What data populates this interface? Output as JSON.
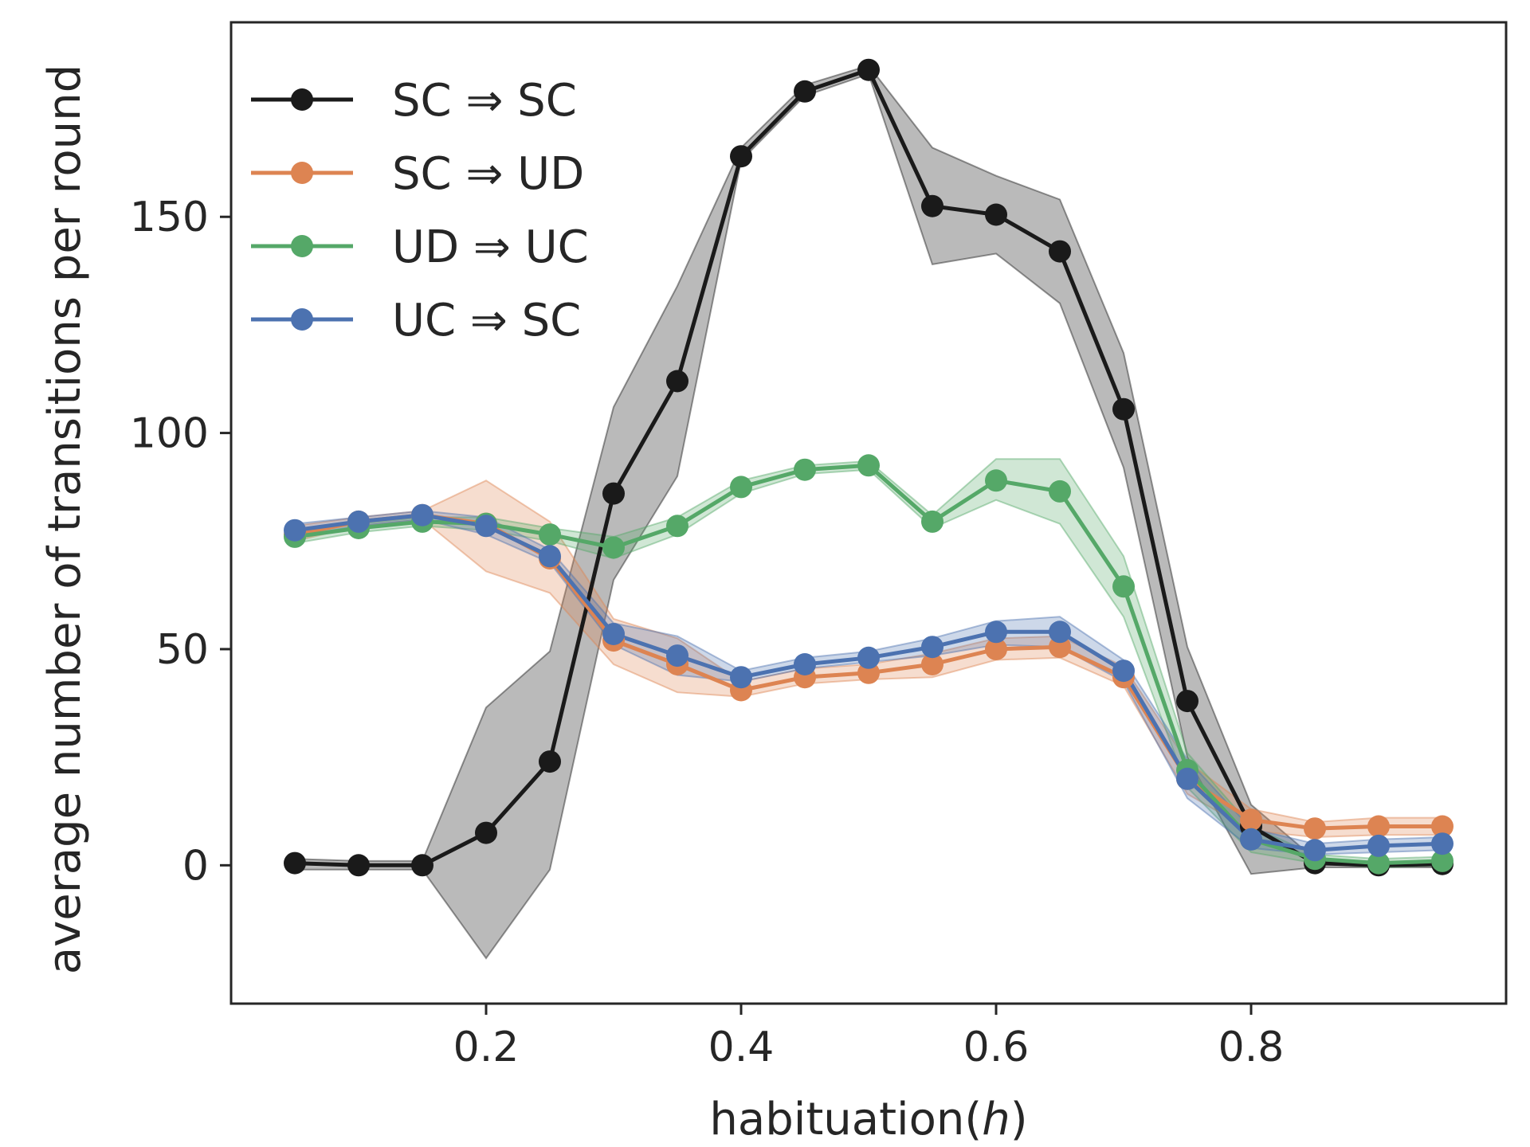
{
  "chart_data": {
    "type": "line",
    "title": "",
    "xlabel": "habituation(",
    "xlabel_var": "h",
    "xlabel_close": ")",
    "ylabel": "average number of transitions per round",
    "xlim": [
      0.0,
      1.0
    ],
    "ylim": [
      -32,
      195
    ],
    "xticks": [
      0.2,
      0.4,
      0.6,
      0.8
    ],
    "xtick_labels": [
      "0.2",
      "0.4",
      "0.6",
      "0.8"
    ],
    "yticks": [
      0,
      50,
      100,
      150
    ],
    "ytick_labels": [
      "0",
      "50",
      "100",
      "150"
    ],
    "grid": false,
    "legend_position": "top-left",
    "x": [
      0.05,
      0.1,
      0.15,
      0.2,
      0.25,
      0.3,
      0.35,
      0.4,
      0.45,
      0.5,
      0.55,
      0.6,
      0.65,
      0.7,
      0.75,
      0.8,
      0.85,
      0.9,
      0.95
    ],
    "series": [
      {
        "name": "SC ⇒ SC",
        "color": "#1a1a1a",
        "values": [
          0.5,
          0,
          0,
          7.5,
          24,
          86,
          112,
          164,
          179,
          184,
          152.5,
          150.5,
          142,
          105.5,
          38,
          9,
          0.5,
          0,
          0.3
        ],
        "lower": [
          -1,
          -1,
          -1,
          -21.5,
          -1,
          66,
          90,
          163,
          178,
          183,
          139,
          141.5,
          130,
          92,
          25,
          -2,
          -0.5,
          -0.5,
          -0.5
        ],
        "upper": [
          1.5,
          1,
          1,
          36.5,
          49.5,
          106,
          134,
          166,
          180.5,
          185,
          166,
          159.5,
          154,
          118.5,
          50.5,
          14,
          1.5,
          0.5,
          1
        ]
      },
      {
        "name": "SC ⇒ UD",
        "color": "#dd8452",
        "values": [
          76.5,
          79.5,
          81,
          79,
          71,
          52,
          46.5,
          40.5,
          43.5,
          44.5,
          46.5,
          50,
          50.5,
          43.5,
          20,
          10.5,
          8.5,
          9,
          9
        ],
        "lower": [
          75,
          78.5,
          80,
          68,
          63,
          46.5,
          40,
          39,
          42,
          43,
          43.5,
          47.5,
          48,
          41.5,
          16.5,
          8,
          6.5,
          7,
          7
        ],
        "upper": [
          78.5,
          80.5,
          82,
          89,
          79.5,
          57,
          52.5,
          42.5,
          45.5,
          46.5,
          49,
          52.5,
          53,
          46,
          24,
          13,
          10,
          11,
          11
        ]
      },
      {
        "name": "UD ⇒ UC",
        "color": "#55a868",
        "values": [
          76,
          78,
          79.5,
          79,
          76.5,
          73.5,
          78.5,
          87.5,
          91.5,
          92.5,
          79.5,
          89,
          86.5,
          64.5,
          22,
          6,
          1.5,
          0.5,
          1
        ],
        "lower": [
          74.5,
          77,
          78.5,
          77.5,
          75,
          71,
          76.5,
          86,
          90.5,
          91.5,
          78,
          84.5,
          79,
          57.5,
          18,
          3,
          0.5,
          -0.5,
          0
        ],
        "upper": [
          77.5,
          79,
          80.5,
          80.5,
          78,
          76,
          80.5,
          89,
          92.5,
          93.5,
          81,
          94,
          94,
          71.5,
          26,
          9,
          2.5,
          1.5,
          2
        ]
      },
      {
        "name": "UC ⇒ SC",
        "color": "#4c72b0",
        "values": [
          77.5,
          79.5,
          81,
          78.5,
          71.5,
          53.5,
          48.5,
          43.5,
          46.5,
          48,
          50.5,
          54,
          54,
          45,
          20,
          6,
          3.5,
          4.5,
          5
        ],
        "lower": [
          76,
          78.5,
          80,
          76.5,
          70,
          51,
          44,
          42.5,
          45.5,
          47,
          48.5,
          51,
          50.5,
          42.5,
          15.5,
          4,
          2.5,
          3,
          3.5
        ],
        "upper": [
          79,
          80.5,
          82,
          80.5,
          73,
          56,
          53,
          45,
          48,
          49.5,
          52.5,
          56.5,
          57.5,
          47.5,
          24.5,
          8.5,
          5,
          6,
          6.5
        ]
      }
    ]
  }
}
